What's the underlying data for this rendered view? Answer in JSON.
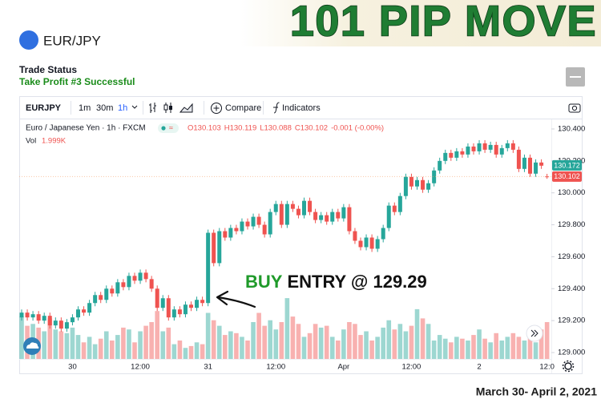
{
  "header": {
    "symbol": "EUR/JPY",
    "headline": "101 PIP MOVE",
    "trade_status": "Trade Status",
    "trade_result": "Take Profit #3 Successful",
    "date_range": "March 30- April 2, 2021"
  },
  "toolbar": {
    "symbol": "EURJPY",
    "intervals": [
      "1m",
      "30m",
      "1h"
    ],
    "compare": "Compare",
    "indicators": "Indicators"
  },
  "annotation": {
    "buy": "BUY",
    "entry": "ENTRY @ 129.29"
  },
  "chart_data": {
    "type": "candlestick",
    "title": "Euro / Japanese Yen · 1h · FXCM",
    "ohlc_legend": [
      "O130.103",
      "H130.119",
      "L130.088",
      "C130.102",
      "-0.001 (-0.00%)"
    ],
    "volume_name": "Vol",
    "categories": [
      null,
      null,
      null,
      null,
      null,
      null,
      null,
      null,
      null,
      "30",
      null,
      null,
      null,
      null,
      null,
      null,
      null,
      null,
      null,
      null,
      null,
      "12:00",
      null,
      null,
      null,
      null,
      null,
      null,
      null,
      null,
      null,
      null,
      null,
      "31",
      null,
      null,
      null,
      null,
      null,
      null,
      null,
      null,
      null,
      null,
      null,
      "12:00",
      null,
      null,
      null,
      null,
      null,
      null,
      null,
      null,
      null,
      null,
      null,
      "Apr",
      null,
      null,
      null,
      null,
      null,
      null,
      null,
      null,
      null,
      null,
      null,
      "12:00",
      null,
      null,
      null,
      null,
      null,
      null,
      null,
      null,
      null,
      null,
      null,
      "2",
      null,
      null,
      null,
      null,
      null,
      null,
      null,
      null,
      null,
      null,
      null,
      "12:0"
    ],
    "open": [
      129.22,
      129.25,
      129.22,
      129.24,
      129.2,
      129.23,
      129.17,
      129.2,
      129.15,
      129.19,
      129.22,
      129.27,
      129.25,
      129.31,
      129.36,
      129.33,
      129.4,
      129.37,
      129.44,
      129.41,
      129.48,
      129.45,
      129.5,
      129.46,
      129.4,
      129.28,
      129.34,
      129.22,
      129.27,
      129.24,
      129.3,
      129.28,
      129.33,
      129.31,
      129.75,
      129.56,
      129.76,
      129.72,
      129.78,
      129.76,
      129.82,
      129.79,
      129.85,
      129.8,
      129.74,
      129.88,
      129.93,
      129.8,
      129.93,
      129.9,
      129.86,
      129.95,
      129.88,
      129.83,
      129.86,
      129.82,
      129.88,
      129.84,
      129.91,
      129.76,
      129.7,
      129.66,
      129.72,
      129.65,
      129.71,
      129.78,
      129.92,
      129.88,
      129.98,
      130.1,
      130.04,
      130.08,
      130.02,
      130.06,
      130.14,
      130.2,
      130.25,
      130.22,
      130.26,
      130.24,
      130.29,
      130.26,
      130.31,
      130.27,
      130.3,
      130.24,
      130.28,
      130.31,
      130.27,
      130.15,
      130.22,
      130.12,
      130.19,
      130.103
    ],
    "high": [
      129.27,
      129.27,
      129.26,
      129.26,
      129.25,
      129.25,
      129.22,
      129.22,
      129.21,
      129.24,
      129.29,
      129.29,
      129.33,
      129.38,
      129.38,
      129.42,
      129.42,
      129.46,
      129.46,
      129.5,
      129.5,
      129.52,
      129.52,
      129.48,
      129.42,
      129.36,
      129.36,
      129.29,
      129.29,
      129.32,
      129.32,
      129.35,
      129.35,
      129.77,
      129.77,
      129.78,
      129.78,
      129.8,
      129.8,
      129.84,
      129.84,
      129.87,
      129.87,
      129.82,
      129.9,
      129.95,
      129.95,
      129.95,
      129.95,
      129.92,
      129.97,
      129.97,
      129.9,
      129.88,
      129.88,
      129.9,
      129.9,
      129.93,
      129.93,
      129.78,
      129.72,
      129.74,
      129.74,
      129.73,
      129.8,
      129.94,
      129.94,
      130.0,
      130.12,
      130.12,
      130.1,
      130.1,
      130.08,
      130.16,
      130.22,
      130.27,
      130.27,
      130.28,
      130.28,
      130.31,
      130.31,
      130.33,
      130.33,
      130.32,
      130.32,
      130.3,
      130.33,
      130.33,
      130.29,
      130.24,
      130.24,
      130.21,
      130.21,
      130.119
    ],
    "low": [
      129.2,
      129.2,
      129.2,
      129.18,
      129.18,
      129.15,
      129.15,
      129.13,
      129.13,
      129.17,
      129.2,
      129.23,
      129.23,
      129.29,
      129.31,
      129.31,
      129.35,
      129.35,
      129.39,
      129.39,
      129.43,
      129.43,
      129.44,
      129.38,
      129.26,
      129.26,
      129.2,
      129.2,
      129.22,
      129.22,
      129.26,
      129.26,
      129.29,
      129.29,
      129.54,
      129.54,
      129.7,
      129.7,
      129.74,
      129.74,
      129.77,
      129.77,
      129.78,
      129.72,
      129.72,
      129.86,
      129.78,
      129.78,
      129.88,
      129.84,
      129.84,
      129.86,
      129.81,
      129.81,
      129.8,
      129.8,
      129.82,
      129.82,
      129.74,
      129.68,
      129.64,
      129.64,
      129.63,
      129.63,
      129.69,
      129.76,
      129.86,
      129.86,
      129.96,
      130.02,
      130.02,
      130.0,
      130.0,
      130.04,
      130.12,
      130.18,
      130.2,
      130.2,
      130.22,
      130.22,
      130.24,
      130.24,
      130.25,
      130.25,
      130.22,
      130.22,
      130.26,
      130.25,
      130.13,
      130.13,
      130.1,
      130.1,
      130.15,
      130.088
    ],
    "close": [
      129.25,
      129.22,
      129.24,
      129.2,
      129.23,
      129.17,
      129.2,
      129.15,
      129.19,
      129.22,
      129.27,
      129.25,
      129.31,
      129.36,
      129.33,
      129.4,
      129.37,
      129.44,
      129.41,
      129.48,
      129.45,
      129.5,
      129.46,
      129.4,
      129.28,
      129.34,
      129.22,
      129.27,
      129.24,
      129.3,
      129.28,
      129.33,
      129.31,
      129.75,
      129.56,
      129.76,
      129.72,
      129.78,
      129.76,
      129.82,
      129.79,
      129.85,
      129.8,
      129.74,
      129.88,
      129.93,
      129.8,
      129.93,
      129.9,
      129.86,
      129.95,
      129.88,
      129.83,
      129.86,
      129.82,
      129.88,
      129.84,
      129.91,
      129.76,
      129.7,
      129.66,
      129.72,
      129.65,
      129.71,
      129.78,
      129.92,
      129.88,
      129.98,
      130.1,
      130.04,
      130.08,
      130.02,
      130.06,
      130.14,
      130.2,
      130.25,
      130.22,
      130.26,
      130.24,
      130.29,
      130.26,
      130.31,
      130.27,
      130.3,
      130.24,
      130.28,
      130.31,
      130.27,
      130.15,
      130.22,
      130.12,
      130.19,
      130.17,
      130.102
    ],
    "volume": [
      2300,
      1800,
      1900,
      1700,
      1500,
      2200,
      1600,
      1500,
      1400,
      1700,
      1300,
      900,
      1200,
      800,
      1100,
      1500,
      1000,
      1300,
      1700,
      1600,
      900,
      1500,
      1800,
      2000,
      2600,
      1500,
      1700,
      800,
      1000,
      600,
      700,
      900,
      800,
      2500,
      2100,
      1800,
      1300,
      1500,
      1400,
      1200,
      1000,
      2000,
      2500,
      1800,
      2100,
      1600,
      2000,
      3300,
      2300,
      1900,
      1200,
      1400,
      1900,
      1700,
      1800,
      1200,
      1000,
      1600,
      2000,
      1900,
      1300,
      1500,
      1000,
      1200,
      1700,
      2100,
      1600,
      1900,
      1500,
      1800,
      2700,
      2200,
      1900,
      1000,
      1300,
      1100,
      900,
      1200,
      1100,
      1000,
      1300,
      1600,
      1100,
      900,
      1400,
      1000,
      1200,
      1400,
      1200,
      1000,
      1400,
      900,
      1600,
      1999
    ],
    "volume_value_labels": {
      "93": "1.999K"
    },
    "up_color": "#26a69a",
    "down_color": "#ef5350",
    "ylim": [
      128.96,
      130.46
    ],
    "yticks": [
      {
        "value": 129.0,
        "label": "129.000"
      },
      {
        "value": 129.2,
        "label": "129.200"
      },
      {
        "value": 129.4,
        "label": "129.400"
      },
      {
        "value": 129.6,
        "label": "129.600"
      },
      {
        "value": 129.8,
        "label": "129.800"
      },
      {
        "value": 130.0,
        "label": "130.000"
      },
      {
        "value": 130.2,
        "label": "130.200"
      },
      {
        "value": 130.4,
        "label": "130.400"
      }
    ],
    "volume_lim": [
      0,
      13000
    ],
    "price_lines": [
      {
        "value": 130.172,
        "color": "#26a69a"
      },
      {
        "value": 130.102,
        "color": "#ef5350"
      }
    ]
  }
}
